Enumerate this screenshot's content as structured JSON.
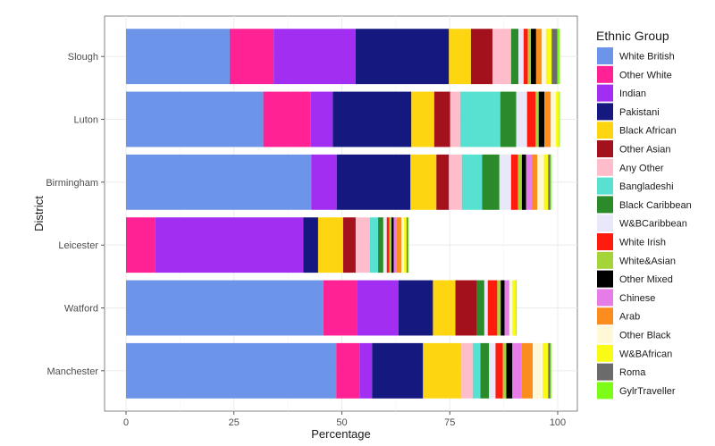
{
  "chart_data": {
    "type": "bar",
    "orientation": "horizontal",
    "stacked": true,
    "xlabel": "Percentage",
    "ylabel": "District",
    "xlim": [
      0,
      100
    ],
    "x_ticks": [
      0,
      25,
      50,
      75,
      100
    ],
    "grid": true,
    "legend": {
      "title": "Ethnic Group",
      "position": "right"
    },
    "categories": [
      "Manchester",
      "Watford",
      "Leicester",
      "Birmingham",
      "Luton",
      "Slough"
    ],
    "series": [
      {
        "name": "White British",
        "color": "#6c94e8",
        "values": [
          48.7,
          45.7,
          0,
          42.9,
          31.8,
          24.0
        ]
      },
      {
        "name": "Other White",
        "color": "#ff2295",
        "values": [
          5.4,
          7.8,
          6.8,
          0,
          11.0,
          10.2
        ]
      },
      {
        "name": "Indian",
        "color": "#a12ef0",
        "values": [
          2.9,
          9.6,
          34.3,
          5.9,
          5.1,
          19.0
        ]
      },
      {
        "name": "Pakistani",
        "color": "#14187f",
        "values": [
          11.8,
          8.0,
          3.4,
          17.1,
          18.2,
          21.6
        ]
      },
      {
        "name": "Black African",
        "color": "#fdd611",
        "values": [
          8.9,
          5.2,
          5.8,
          6.0,
          5.3,
          5.1
        ]
      },
      {
        "name": "Other Asian",
        "color": "#a3111d",
        "values": [
          0,
          5.0,
          2.9,
          2.9,
          3.7,
          5.0
        ]
      },
      {
        "name": "Any Other",
        "color": "#ffbdcc",
        "values": [
          2.6,
          0,
          3.3,
          3.0,
          2.3,
          4.3
        ]
      },
      {
        "name": "Bangladeshi",
        "color": "#58e0d0",
        "values": [
          1.8,
          0,
          1.9,
          4.7,
          9.3,
          0
        ]
      },
      {
        "name": "Black Caribbean",
        "color": "#2b8a2a",
        "values": [
          2.0,
          1.7,
          1.2,
          4.0,
          3.7,
          1.7
        ]
      },
      {
        "name": "W&BCaribbean",
        "color": "#e8e8fa",
        "values": [
          1.5,
          0.8,
          0.8,
          2.7,
          2.5,
          1.2
        ]
      },
      {
        "name": "White Irish",
        "color": "#ff1b0d",
        "values": [
          1.7,
          2.2,
          0.6,
          1.6,
          2.0,
          1.0
        ]
      },
      {
        "name": "White&Asian",
        "color": "#a5d33a",
        "values": [
          0.8,
          0.8,
          0.5,
          0.9,
          0.7,
          0.7
        ]
      },
      {
        "name": "Other Mixed",
        "color": "#000000",
        "values": [
          1.4,
          0.9,
          0.5,
          1.0,
          1.3,
          1.2
        ]
      },
      {
        "name": "Chinese",
        "color": "#e57ce8",
        "values": [
          2.2,
          1.1,
          0.6,
          1.3,
          0,
          0
        ]
      },
      {
        "name": "Arab",
        "color": "#fb8c1e",
        "values": [
          2.5,
          0,
          1.2,
          1.3,
          1.5,
          1.3
        ]
      },
      {
        "name": "Other Black",
        "color": "#fff8d6",
        "values": [
          2.3,
          0.7,
          0.6,
          1.5,
          1.2,
          1.0
        ]
      },
      {
        "name": "W&BAfrican",
        "color": "#fafa17",
        "values": [
          1.3,
          0.8,
          0.6,
          1.0,
          0.7,
          1.3
        ]
      },
      {
        "name": "Roma",
        "color": "#6b6b6b",
        "values": [
          0.5,
          0,
          0.3,
          0.5,
          0,
          1.3
        ]
      },
      {
        "name": "GylrTraveller",
        "color": "#7cfc16",
        "values": [
          0.2,
          0.2,
          0.2,
          0.2,
          0.2,
          0.6
        ]
      }
    ]
  }
}
